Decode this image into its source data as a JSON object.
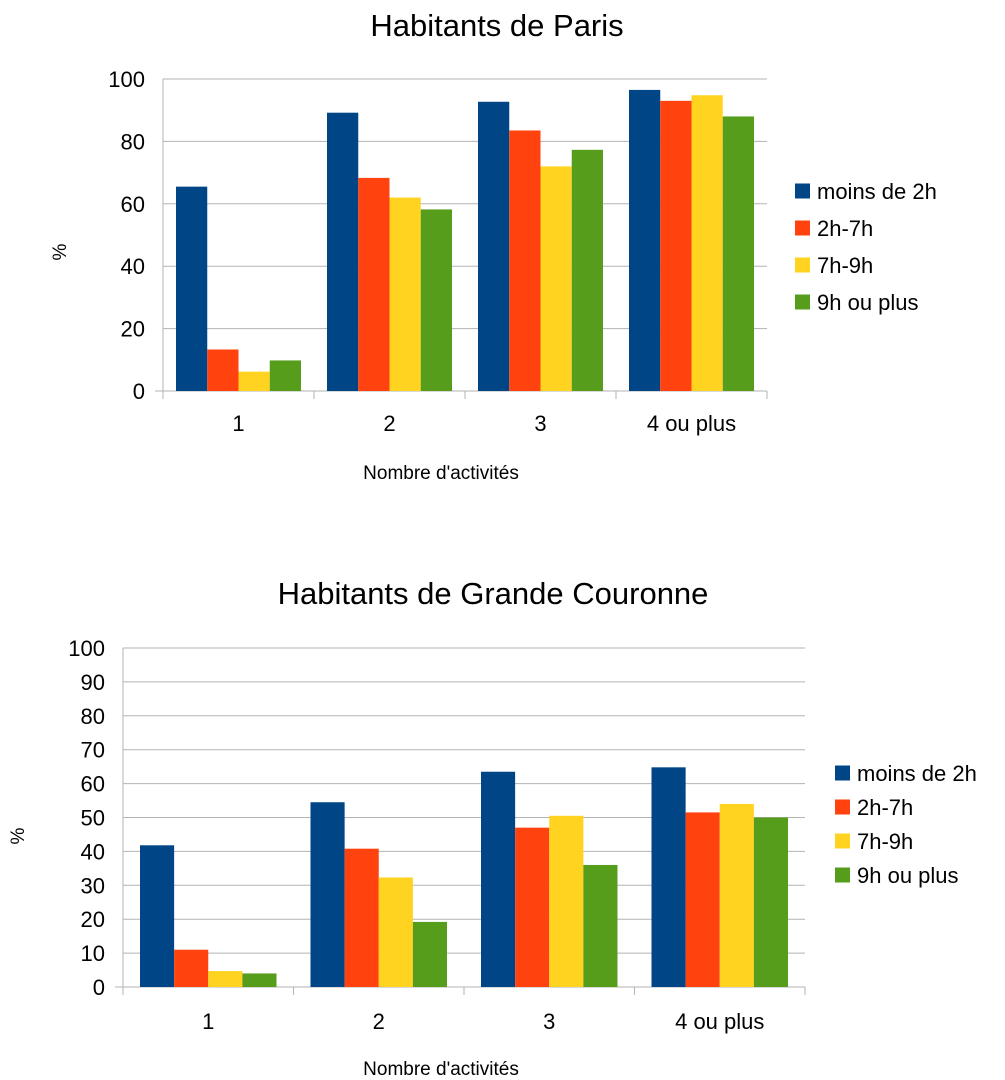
{
  "chart_data": [
    {
      "type": "bar",
      "title": "Habitants de Paris",
      "xlabel": "Nombre d'activités",
      "ylabel": "%",
      "categories": [
        "1",
        "2",
        "3",
        "4 ou plus"
      ],
      "ylim": [
        0,
        100
      ],
      "yticks": [
        "0",
        "20",
        "40",
        "60",
        "80",
        "100"
      ],
      "grid": true,
      "legend_position": "right",
      "series": [
        {
          "name": "moins de 2h",
          "color": "#004586",
          "values": [
            65.5,
            89.2,
            92.7,
            96.5
          ]
        },
        {
          "name": "2h-7h",
          "color": "#ff420e",
          "values": [
            13.3,
            68.3,
            83.5,
            93.0
          ]
        },
        {
          "name": "7h-9h",
          "color": "#ffd320",
          "values": [
            6.2,
            62.0,
            72.0,
            94.8
          ]
        },
        {
          "name": "9h ou plus",
          "color": "#579d1c",
          "values": [
            9.8,
            58.2,
            77.3,
            88.0
          ]
        }
      ]
    },
    {
      "type": "bar",
      "title": "Habitants de Grande Couronne",
      "xlabel": "Nombre d'activités",
      "ylabel": "%",
      "categories": [
        "1",
        "2",
        "3",
        "4 ou plus"
      ],
      "ylim": [
        0,
        100
      ],
      "yticks": [
        "0",
        "10",
        "20",
        "30",
        "40",
        "50",
        "60",
        "70",
        "80",
        "90",
        "100"
      ],
      "grid": true,
      "legend_position": "right",
      "series": [
        {
          "name": "moins de 2h",
          "color": "#004586",
          "values": [
            41.8,
            54.5,
            63.5,
            64.8
          ]
        },
        {
          "name": "2h-7h",
          "color": "#ff420e",
          "values": [
            11.0,
            40.8,
            47.0,
            51.5
          ]
        },
        {
          "name": "7h-9h",
          "color": "#ffd320",
          "values": [
            4.7,
            32.3,
            50.5,
            54.0
          ]
        },
        {
          "name": "9h ou plus",
          "color": "#579d1c",
          "values": [
            4.0,
            19.2,
            36.0,
            50.0
          ]
        }
      ]
    }
  ]
}
